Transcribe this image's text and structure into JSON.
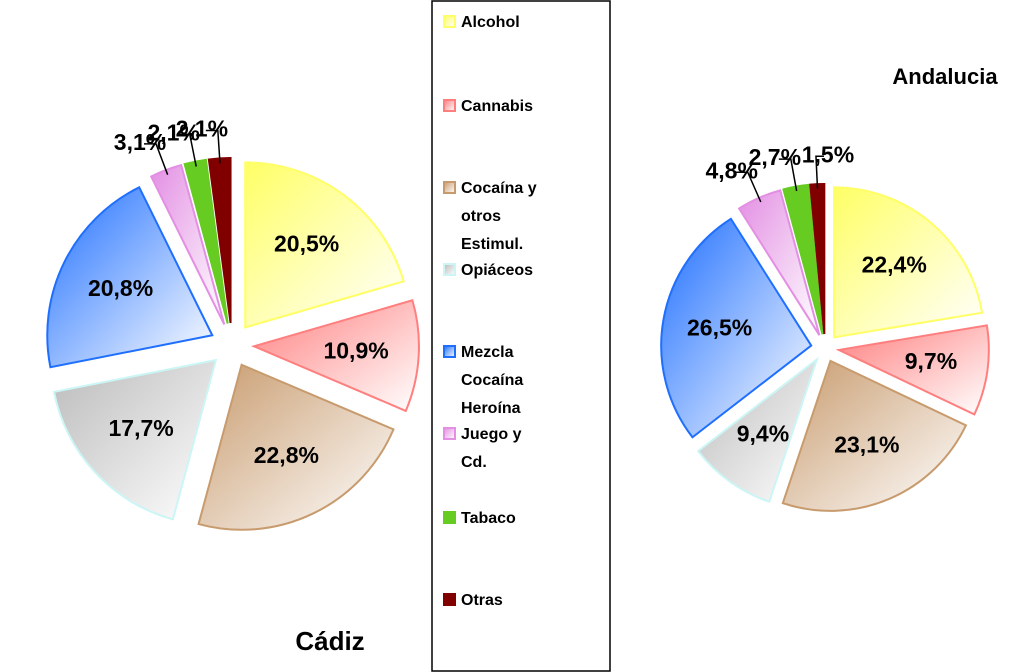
{
  "chart_data": [
    {
      "type": "pie",
      "title": "Cádiz",
      "categories": [
        "Alcohol",
        "Cannabis",
        "Cocaína y otros Estimul.",
        "Opiáceos",
        "Mezcla Cocaína Heroína",
        "Juego y Cd.",
        "Tabaco",
        "Otras"
      ],
      "colors": [
        "#ffff66",
        "#ff7f7f",
        "#c89b6e",
        "#ccf5f5",
        "#1f6fff",
        "#e38fe3",
        "#66cc22",
        "#800000"
      ],
      "values": [
        20.5,
        10.9,
        22.8,
        17.7,
        20.8,
        3.1,
        2.1,
        2.1
      ],
      "value_labels": [
        "20,5%",
        "10,9%",
        "22,8%",
        "17,7%",
        "20,8%",
        "3,1%",
        "2,1%",
        "2,1%"
      ]
    },
    {
      "type": "pie",
      "title": "Andalucia",
      "values": [
        22.4,
        9.7,
        23.1,
        9.4,
        26.5,
        4.8,
        2.7,
        1.5
      ],
      "value_labels": [
        "22,4%",
        "9,7%",
        "23,1%",
        "9,4%",
        "26,5%",
        "4,8%",
        "2,7%",
        "1,5%"
      ]
    }
  ]
}
